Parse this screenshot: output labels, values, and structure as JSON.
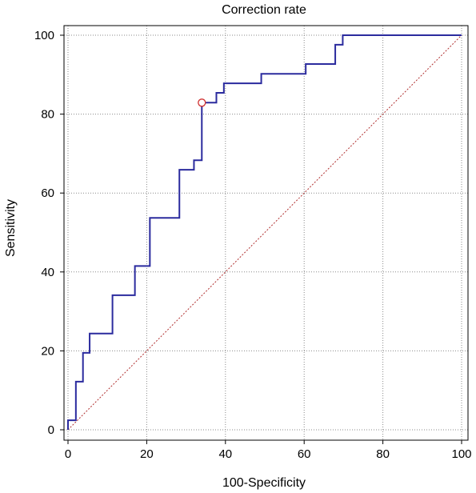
{
  "chart_data": {
    "type": "line",
    "title": "Correction rate",
    "xlabel": "100-Specificity",
    "ylabel": "Sensitivity",
    "xlim": [
      0,
      100
    ],
    "ylim": [
      0,
      100
    ],
    "xticks": [
      0,
      20,
      40,
      60,
      80,
      100
    ],
    "yticks": [
      0,
      20,
      40,
      60,
      80,
      100
    ],
    "grid": true,
    "series": [
      {
        "role": "roc-curve",
        "color": "#2b2b9e",
        "x": [
          0,
          0,
          2,
          2,
          3.8,
          3.8,
          5.5,
          5.5,
          11.3,
          11.3,
          17,
          17,
          20.8,
          20.8,
          28.3,
          28.3,
          32,
          32,
          34,
          34,
          37.7,
          37.7,
          39.6,
          39.6,
          49.1,
          49.1,
          60.4,
          60.4,
          67.9,
          67.9,
          69.8,
          69.8,
          100
        ],
        "y": [
          0,
          2.4,
          2.4,
          12.2,
          12.2,
          19.5,
          19.5,
          24.4,
          24.4,
          34.1,
          34.1,
          41.5,
          41.5,
          53.7,
          53.7,
          65.9,
          65.9,
          68.3,
          68.3,
          82.9,
          82.9,
          85.4,
          85.4,
          87.8,
          87.8,
          90.2,
          90.2,
          92.7,
          92.7,
          97.6,
          97.6,
          100,
          100
        ]
      },
      {
        "role": "reference-diagonal",
        "color": "#b03030",
        "x": [
          0,
          100
        ],
        "y": [
          0,
          100
        ]
      }
    ],
    "optimal_point": {
      "x": 34,
      "y": 82.9,
      "color": "#d03030"
    }
  }
}
